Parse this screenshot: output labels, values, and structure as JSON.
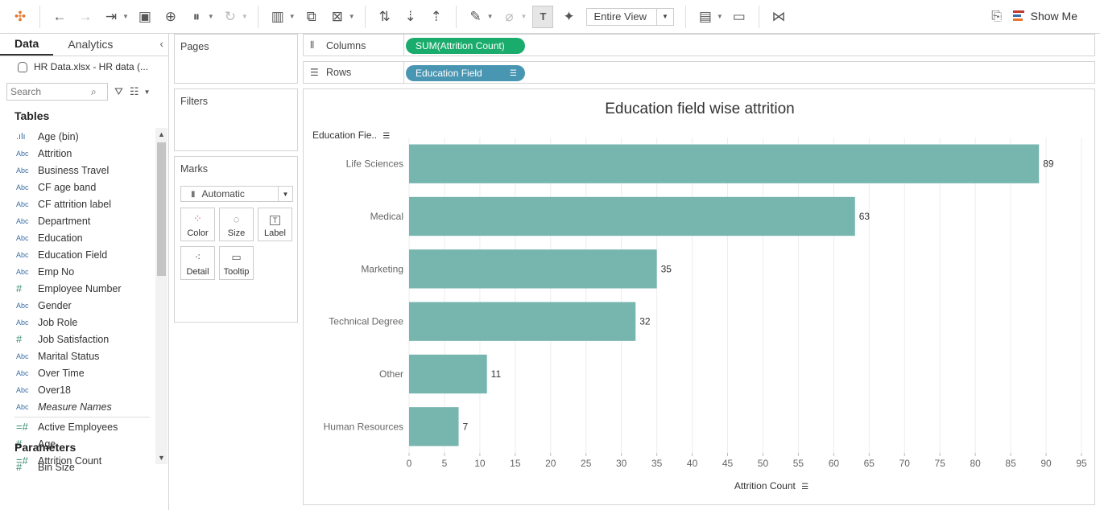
{
  "toolbar": {
    "view_mode": "Entire View",
    "show_me": "Show Me"
  },
  "left_pane": {
    "tabs": [
      "Data",
      "Analytics"
    ],
    "datasource": "HR Data.xlsx - HR data (...",
    "search_placeholder": "Search",
    "tables_heading": "Tables",
    "fields": [
      {
        "name": "Age (bin)",
        "type": "hist"
      },
      {
        "name": "Attrition",
        "type": "Abc"
      },
      {
        "name": "Business Travel",
        "type": "Abc"
      },
      {
        "name": "CF age band",
        "type": "Abc"
      },
      {
        "name": "CF attrition label",
        "type": "Abc"
      },
      {
        "name": "Department",
        "type": "Abc"
      },
      {
        "name": "Education",
        "type": "Abc"
      },
      {
        "name": "Education Field",
        "type": "Abc"
      },
      {
        "name": "Emp No",
        "type": "Abc"
      },
      {
        "name": "Employee Number",
        "type": "#"
      },
      {
        "name": "Gender",
        "type": "Abc"
      },
      {
        "name": "Job Role",
        "type": "Abc"
      },
      {
        "name": "Job Satisfaction",
        "type": "#"
      },
      {
        "name": "Marital Status",
        "type": "Abc"
      },
      {
        "name": "Over Time",
        "type": "Abc"
      },
      {
        "name": "Over18",
        "type": "Abc"
      },
      {
        "name": "Measure Names",
        "type": "Abc",
        "italic": true
      }
    ],
    "measures": [
      {
        "name": "Active Employees",
        "type": "=#"
      },
      {
        "name": "Age",
        "type": "#"
      },
      {
        "name": "Attrition Count",
        "type": "=#"
      }
    ],
    "parameters_heading": "Parameters",
    "parameters": [
      {
        "name": "Bin Size",
        "type": "#"
      }
    ]
  },
  "cards": {
    "pages": "Pages",
    "filters": "Filters",
    "marks": "Marks",
    "mark_type": "Automatic",
    "mark_buttons": [
      "Color",
      "Size",
      "Label",
      "Detail",
      "Tooltip"
    ]
  },
  "shelves": {
    "columns_label": "Columns",
    "columns_pill": "SUM(Attrition Count)",
    "rows_label": "Rows",
    "rows_pill": "Education Field"
  },
  "colors": {
    "bar": "#77b5af",
    "pill_measure": "#1aac6c",
    "pill_dimension": "#4996b2"
  },
  "chart_data": {
    "type": "bar",
    "orientation": "horizontal",
    "title": "Education field wise attrition",
    "row_header": "Education Fie..",
    "xlabel": "Attrition Count",
    "categories": [
      "Life Sciences",
      "Medical",
      "Marketing",
      "Technical Degree",
      "Other",
      "Human Resources"
    ],
    "values": [
      89,
      63,
      35,
      32,
      11,
      7
    ],
    "xlim": [
      0,
      95
    ],
    "xticks": [
      0,
      5,
      10,
      15,
      20,
      25,
      30,
      35,
      40,
      45,
      50,
      55,
      60,
      65,
      70,
      75,
      80,
      85,
      90,
      95
    ],
    "grid": "vertical",
    "data_labels": true
  }
}
